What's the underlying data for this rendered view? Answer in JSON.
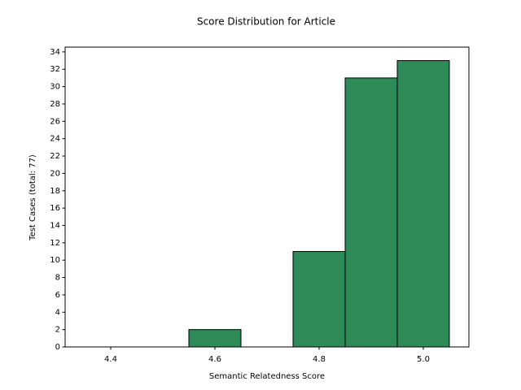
{
  "chart_data": {
    "type": "histogram",
    "title": "Score Distribution for Article",
    "xlabel": "Semantic Relatedness Score",
    "ylabel": "Test Cases (total: 77)",
    "bins": [
      4.35,
      4.45,
      4.55,
      4.65,
      4.75,
      4.85,
      4.95,
      5.05
    ],
    "counts": [
      0,
      0,
      2,
      0,
      11,
      31,
      33
    ],
    "color": "#2e8b57",
    "edgecolor": "#000000",
    "xlim": [
      4.3125,
      5.0875
    ],
    "ylim": [
      0,
      34.55
    ],
    "xticks": [
      4.4,
      4.6,
      4.8,
      {
        "value": 5,
        "label": "5.0"
      }
    ],
    "yticks": [
      0,
      2,
      4,
      6,
      8,
      10,
      12,
      14,
      16,
      18,
      20,
      22,
      24,
      26,
      28,
      30,
      32,
      34
    ]
  }
}
